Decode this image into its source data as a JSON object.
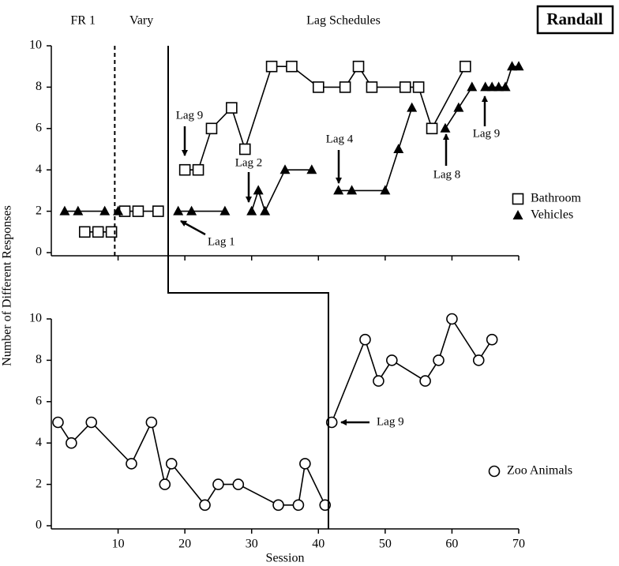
{
  "participant": "Randall",
  "y_label": "Number of Different Responses",
  "x_label": "Session",
  "chart_data": [
    {
      "type": "line",
      "phases": [
        "FR 1",
        "Vary",
        "Lag Schedules"
      ],
      "phase_changes": [
        9.5,
        17.5
      ],
      "xlim": [
        0,
        70
      ],
      "ylim": [
        0,
        10
      ],
      "yticks": [
        0,
        2,
        4,
        6,
        8,
        10
      ],
      "series": [
        {
          "name": "Bathroom",
          "marker": "square",
          "color": "#000000",
          "x": [
            5,
            7,
            9,
            null,
            11,
            13,
            16,
            null,
            20,
            22,
            24,
            27,
            29,
            33,
            36,
            40,
            44,
            46,
            48,
            53,
            55,
            57,
            62
          ],
          "values": [
            1,
            1,
            1,
            null,
            2,
            2,
            2,
            null,
            4,
            4,
            6,
            7,
            5,
            9,
            9,
            8,
            8,
            9,
            8,
            8,
            8,
            6,
            9
          ]
        },
        {
          "name": "Vehicles",
          "marker": "triangle",
          "color": "#000000",
          "x": [
            2,
            4,
            8,
            null,
            10,
            null,
            19,
            21,
            26,
            null,
            30,
            31,
            32,
            35,
            39,
            null,
            43,
            45,
            50,
            52,
            54,
            null,
            59,
            61,
            63,
            null,
            65,
            66,
            67,
            68,
            69,
            70
          ],
          "values": [
            2,
            2,
            2,
            null,
            2,
            null,
            2,
            2,
            2,
            null,
            2,
            3,
            2,
            4,
            4,
            null,
            3,
            3,
            3,
            5,
            7,
            null,
            6,
            7,
            8,
            null,
            8,
            8,
            8,
            8,
            9,
            9
          ]
        }
      ],
      "annotations": [
        "Lag 9",
        "Lag 2",
        "Lag 4",
        "Lag 1",
        "Lag 8",
        "Lag 9"
      ]
    },
    {
      "type": "line",
      "phase_changes": [
        41.5
      ],
      "xlim": [
        0,
        70
      ],
      "ylim": [
        0,
        10
      ],
      "yticks": [
        0,
        2,
        4,
        6,
        8,
        10
      ],
      "xticks": [
        10,
        20,
        30,
        40,
        50,
        60,
        70
      ],
      "series": [
        {
          "name": "Zoo Animals",
          "marker": "circle",
          "color": "#000000",
          "x": [
            1,
            3,
            6,
            12,
            15,
            17,
            18,
            23,
            25,
            28,
            34,
            37,
            38,
            41,
            null,
            42,
            47,
            49,
            51,
            56,
            58,
            60,
            64,
            66
          ],
          "values": [
            5,
            4,
            5,
            3,
            5,
            2,
            3,
            1,
            2,
            2,
            1,
            1,
            3,
            1,
            null,
            5,
            9,
            7,
            8,
            7,
            8,
            10,
            8,
            9
          ]
        }
      ],
      "annotations": [
        "Lag 9"
      ]
    }
  ]
}
